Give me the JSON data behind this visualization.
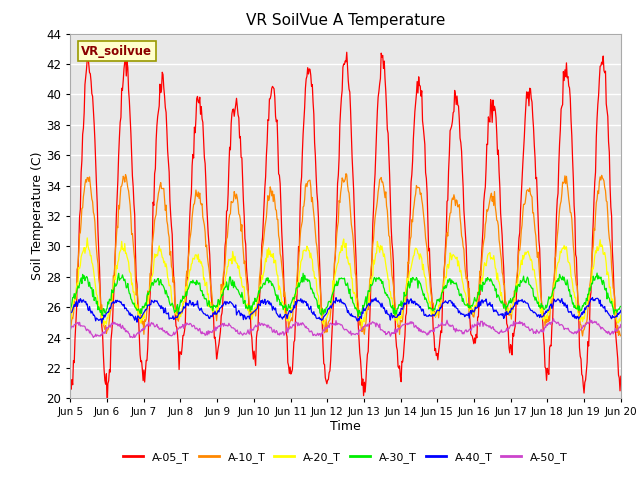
{
  "title": "VR SoilVue A Temperature",
  "xlabel": "Time",
  "ylabel": "Soil Temperature (C)",
  "ylim": [
    20,
    44
  ],
  "yticks": [
    20,
    22,
    24,
    26,
    28,
    30,
    32,
    34,
    36,
    38,
    40,
    42,
    44
  ],
  "background_color": "#e8e8e8",
  "fig_color": "#ffffff",
  "grid_color": "#ffffff",
  "legend_label": "VR_soilvue",
  "series_colors": {
    "A-05_T": "#ff0000",
    "A-10_T": "#ff8800",
    "A-20_T": "#ffff00",
    "A-30_T": "#00ee00",
    "A-40_T": "#0000ff",
    "A-50_T": "#cc44cc"
  },
  "legend_series_order": [
    "A-05_T",
    "A-10_T",
    "A-20_T",
    "A-30_T",
    "A-40_T",
    "A-50_T"
  ],
  "xtick_labels": [
    "Jun 5",
    "Jun 6",
    "Jun 7",
    "Jun 8",
    "Jun 9",
    "Jun 10",
    "Jun 11",
    "Jun 12",
    "Jun 13",
    "Jun 14",
    "Jun 15",
    "Jun 16",
    "Jun 17",
    "Jun 18",
    "Jun 19",
    "Jun 20"
  ],
  "depth_params": {
    "A-05_T": {
      "base": 31.5,
      "amp": 9.5,
      "phase": 0.0,
      "noise": 0.4,
      "trend": 0.0
    },
    "A-10_T": {
      "base": 29.5,
      "amp": 4.5,
      "phase": 0.15,
      "noise": 0.25,
      "trend": 0.0
    },
    "A-20_T": {
      "base": 27.5,
      "amp": 2.2,
      "phase": 0.4,
      "noise": 0.2,
      "trend": 0.05
    },
    "A-30_T": {
      "base": 26.8,
      "amp": 1.0,
      "phase": 0.8,
      "noise": 0.15,
      "trend": 0.06
    },
    "A-40_T": {
      "base": 25.8,
      "amp": 0.55,
      "phase": 1.3,
      "noise": 0.1,
      "trend": 0.07
    },
    "A-50_T": {
      "base": 24.5,
      "amp": 0.35,
      "phase": 1.8,
      "noise": 0.08,
      "trend": 0.1
    }
  }
}
